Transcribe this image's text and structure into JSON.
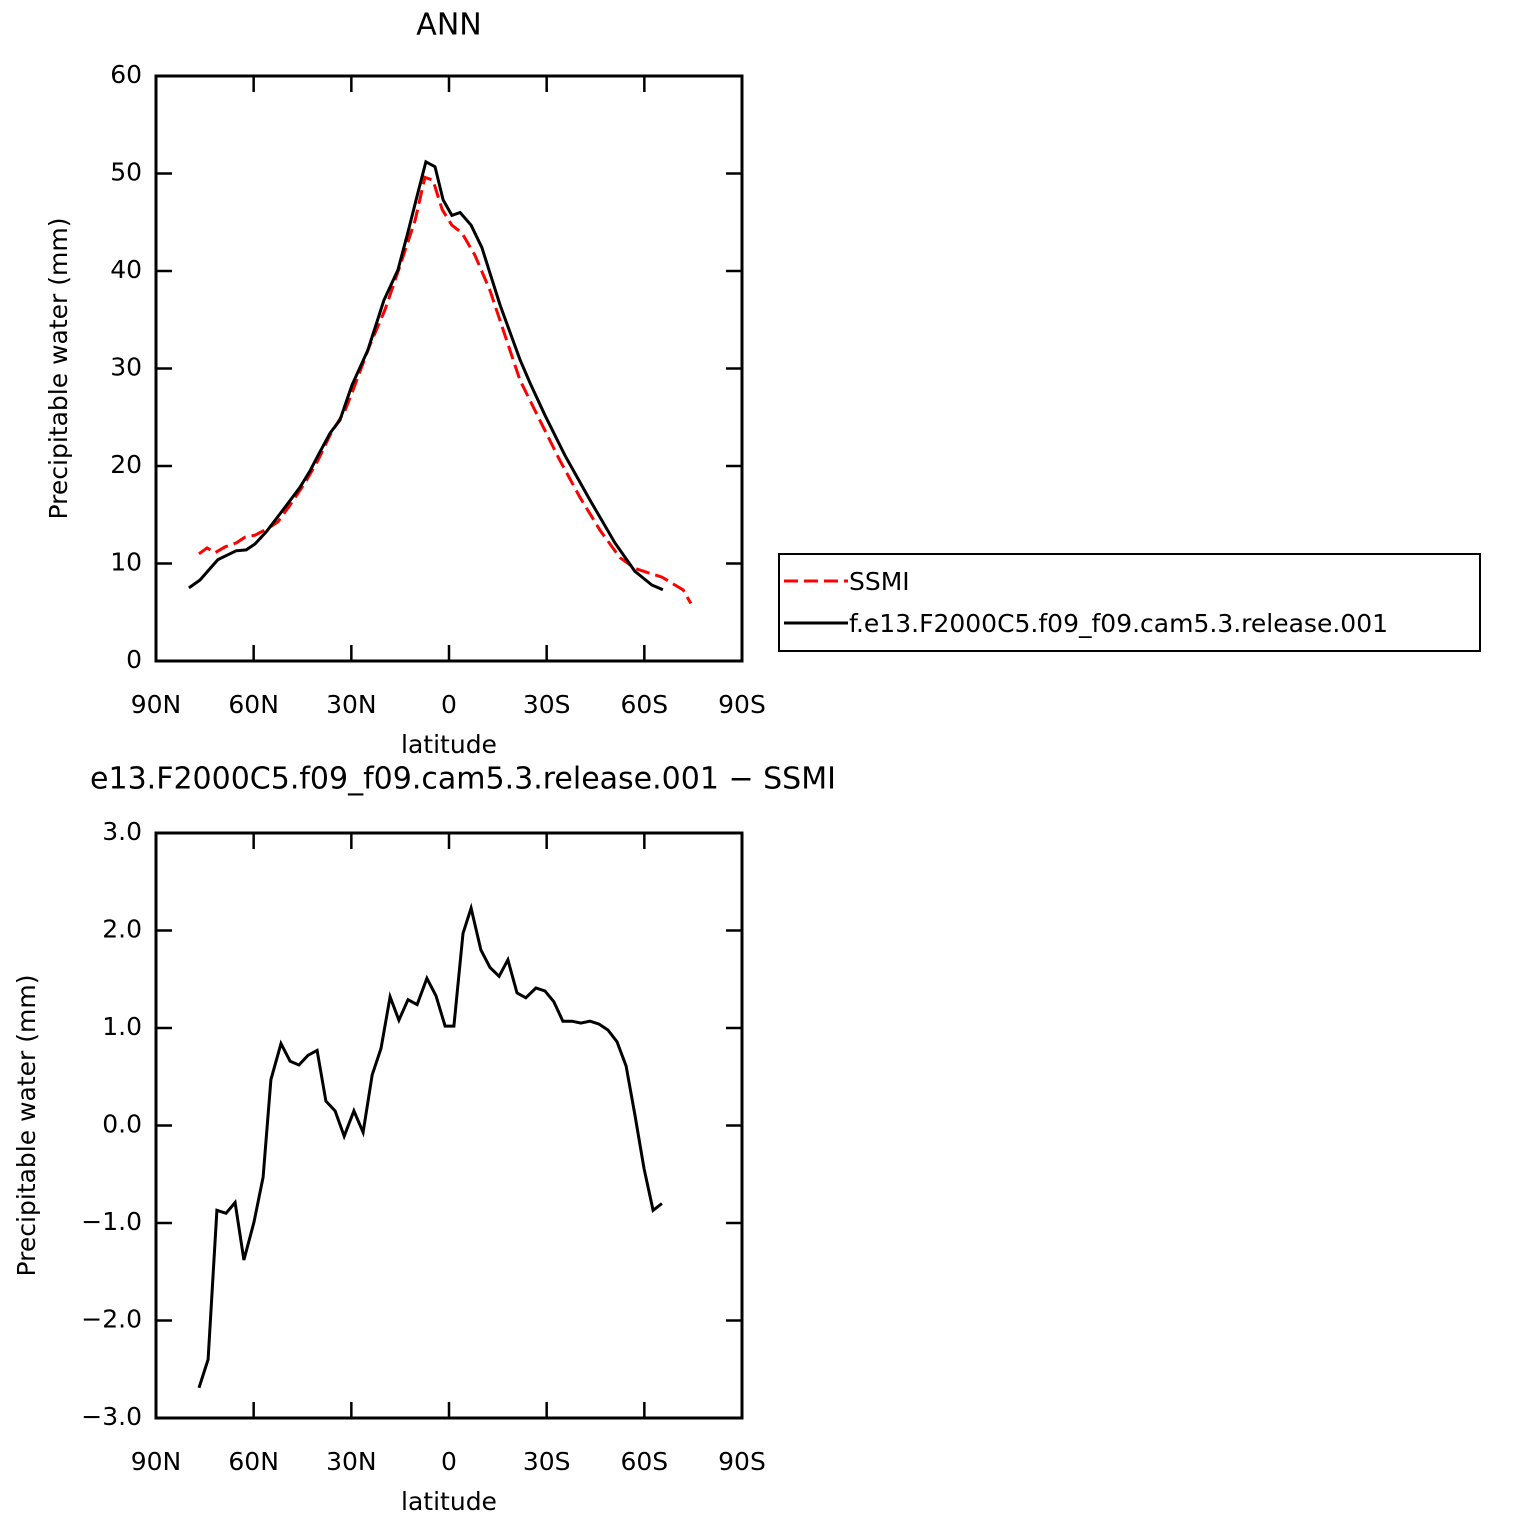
{
  "chart_data": [
    {
      "type": "line",
      "title": "ANN",
      "xlabel": "latitude",
      "ylabel": "Precipitable water (mm)",
      "xlim": [
        90,
        -90
      ],
      "xticks": [
        {
          "value": 90,
          "label": "90N"
        },
        {
          "value": 60,
          "label": "60N"
        },
        {
          "value": 30,
          "label": "30N"
        },
        0,
        {
          "value": -30,
          "label": "30S"
        },
        {
          "value": -60,
          "label": "60S"
        },
        {
          "value": -90,
          "label": "90S"
        }
      ],
      "ylim": [
        0,
        60
      ],
      "yticks": [
        0,
        10,
        20,
        30,
        40,
        50,
        60
      ],
      "series": [
        {
          "name": "SSMI",
          "color": "#ff0000",
          "linestyle": "dashed",
          "x": [
            76.8,
            74.3,
            71.9,
            68.8,
            65.4,
            62.7,
            59.6,
            55.6,
            52.5,
            48.8,
            44.2,
            40.2,
            36.5,
            31.9,
            28.9,
            24.3,
            19.7,
            15,
            10.4,
            7.4,
            4.9,
            2.1,
            -0.9,
            -4,
            -8,
            -12.6,
            -17.2,
            -21.8,
            -27.9,
            -34,
            -40.2,
            -46.4,
            -52.5,
            -57.1,
            -61.7,
            -65.4,
            -69.4,
            -71.9,
            -74.3
          ],
          "values": [
            11.0,
            11.6,
            11.1,
            11.7,
            12.1,
            12.7,
            12.9,
            13.6,
            14.3,
            16.0,
            18.3,
            20.6,
            23.2,
            25.7,
            28.3,
            32.4,
            36.0,
            40.6,
            45.2,
            49.6,
            49.3,
            46.3,
            44.7,
            43.9,
            41.6,
            38.0,
            33.4,
            28.8,
            24.7,
            20.6,
            16.8,
            13.4,
            10.6,
            9.5,
            9.0,
            8.6,
            7.8,
            7.3,
            5.9
          ]
        },
        {
          "name": "f.e13.F2000C5.f09_f09.cam5.3.release.001",
          "color": "#000000",
          "linestyle": "solid",
          "x": [
            79.9,
            76.5,
            71,
            65.4,
            62.3,
            59.6,
            56,
            51,
            45.8,
            42.7,
            40.2,
            36.5,
            33.5,
            29.8,
            24.9,
            20,
            15.7,
            12.6,
            9.5,
            7.1,
            4.3,
            1.8,
            -0.9,
            -3.4,
            -6.8,
            -10.1,
            -15.7,
            -21.8,
            -24.9,
            -29.5,
            -35.6,
            -43.3,
            -51,
            -57.1,
            -62.3,
            -65.7
          ],
          "values": [
            7.5,
            8.3,
            10.4,
            11.3,
            11.4,
            12.0,
            13.3,
            15.5,
            17.8,
            19.5,
            21.1,
            23.4,
            24.7,
            28.3,
            31.9,
            37.0,
            40.1,
            44.0,
            48.1,
            51.2,
            50.7,
            47.3,
            45.7,
            46.0,
            44.7,
            42.4,
            36.5,
            30.9,
            28.5,
            25.2,
            21.1,
            16.5,
            12.1,
            9.2,
            7.8,
            7.3
          ]
        }
      ]
    },
    {
      "type": "line",
      "title": "e13.F2000C5.f09_f09.cam5.3.release.001 − SSMI",
      "xlabel": "latitude",
      "ylabel": "Precipitable water (mm)",
      "xlim": [
        90,
        -90
      ],
      "xticks": [
        {
          "value": 90,
          "label": "90N"
        },
        {
          "value": 60,
          "label": "60N"
        },
        {
          "value": 30,
          "label": "30N"
        },
        0,
        {
          "value": -30,
          "label": "30S"
        },
        {
          "value": -60,
          "label": "60S"
        },
        {
          "value": -90,
          "label": "90S"
        }
      ],
      "ylim": [
        -3,
        3
      ],
      "yticks": [
        {
          "value": -3,
          "label": "−3.0"
        },
        {
          "value": -2,
          "label": "−2.0"
        },
        {
          "value": -1,
          "label": "−1.0"
        },
        {
          "value": 0,
          "label": "0.0"
        },
        {
          "value": 1,
          "label": "1.0"
        },
        {
          "value": 2,
          "label": "2.0"
        },
        {
          "value": 3,
          "label": "3.0"
        }
      ],
      "series": [
        {
          "color": "#000000",
          "linestyle": "solid",
          "x": [
            76.8,
            74,
            71.3,
            68.5,
            65.7,
            63,
            59.9,
            57.1,
            54.7,
            51.6,
            48.8,
            46.1,
            43.3,
            40.5,
            37.8,
            35,
            32.2,
            29.2,
            26.4,
            23.6,
            20.9,
            18.1,
            15.4,
            12.6,
            9.8,
            6.8,
            4.0,
            1.2,
            -1.5,
            -4.3,
            -6.8,
            -9.8,
            -12.6,
            -15.4,
            -18.1,
            -20.9,
            -23.6,
            -26.7,
            -29.5,
            -32.2,
            -35,
            -37.8,
            -40.5,
            -43.3,
            -46.1,
            -48.8,
            -51.6,
            -54.4,
            -57.1,
            -59.9,
            -62.7,
            -65.4
          ],
          "values": [
            -2.69,
            -2.4,
            -0.87,
            -0.9,
            -0.79,
            -1.38,
            -0.99,
            -0.53,
            0.47,
            0.84,
            0.66,
            0.62,
            0.72,
            0.77,
            0.25,
            0.15,
            -0.11,
            0.15,
            -0.07,
            0.52,
            0.79,
            1.32,
            1.08,
            1.29,
            1.24,
            1.51,
            1.33,
            1.02,
            1.02,
            1.97,
            2.23,
            1.8,
            1.62,
            1.53,
            1.7,
            1.36,
            1.31,
            1.41,
            1.38,
            1.27,
            1.07,
            1.07,
            1.05,
            1.07,
            1.04,
            0.98,
            0.86,
            0.61,
            0.11,
            -0.44,
            -0.87,
            -0.8
          ]
        }
      ]
    }
  ]
}
